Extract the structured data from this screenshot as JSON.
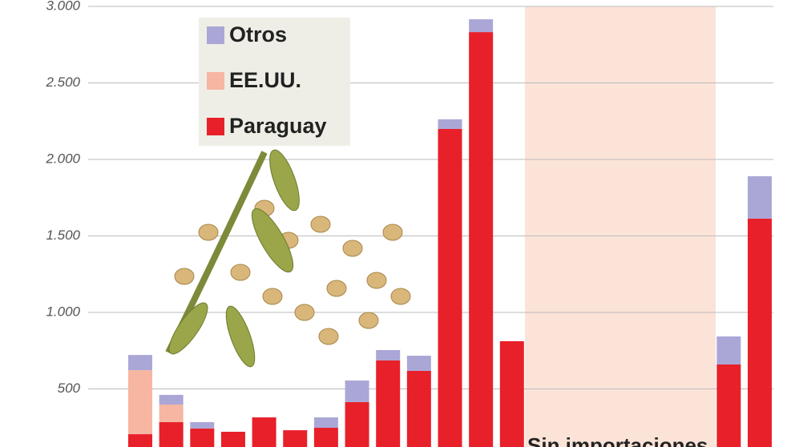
{
  "chart_data": {
    "type": "stacked_bar",
    "categories": [
      null,
      null,
      null,
      null,
      null,
      null,
      null,
      null,
      null,
      null,
      null,
      null,
      null,
      null,
      null,
      null,
      null,
      null,
      null,
      null,
      null
    ],
    "series": [
      {
        "name": "Paraguay",
        "color": "#e8202a",
        "values": [
          204,
          283,
          241,
          220,
          314,
          230,
          246,
          414,
          686,
          618,
          2199,
          2832,
          812,
          null,
          null,
          null,
          null,
          null,
          null,
          660,
          1613
        ]
      },
      {
        "name": "EE.UU.",
        "color": "#f6b6a2",
        "values": [
          419,
          115,
          0,
          0,
          0,
          0,
          0,
          0,
          0,
          0,
          0,
          0,
          0,
          null,
          null,
          null,
          null,
          null,
          null,
          0,
          0
        ]
      },
      {
        "name": "Otros",
        "color": "#aaa7d7",
        "values": [
          99,
          63,
          42,
          0,
          0,
          0,
          68,
          141,
          68,
          99,
          63,
          84,
          0,
          null,
          null,
          null,
          null,
          null,
          null,
          183,
          277
        ]
      }
    ],
    "ylim": [
      0,
      3000
    ],
    "yticks": [
      500,
      {
        "value": 1000,
        "label": "1.000"
      },
      {
        "value": 1500,
        "label": "1.500"
      },
      {
        "value": 2000,
        "label": "2.000"
      },
      {
        "value": 2500,
        "label": "2.500"
      },
      {
        "value": 3000,
        "label": "3.000"
      }
    ],
    "grid": true,
    "annotation": "Sin importaciones"
  }
}
